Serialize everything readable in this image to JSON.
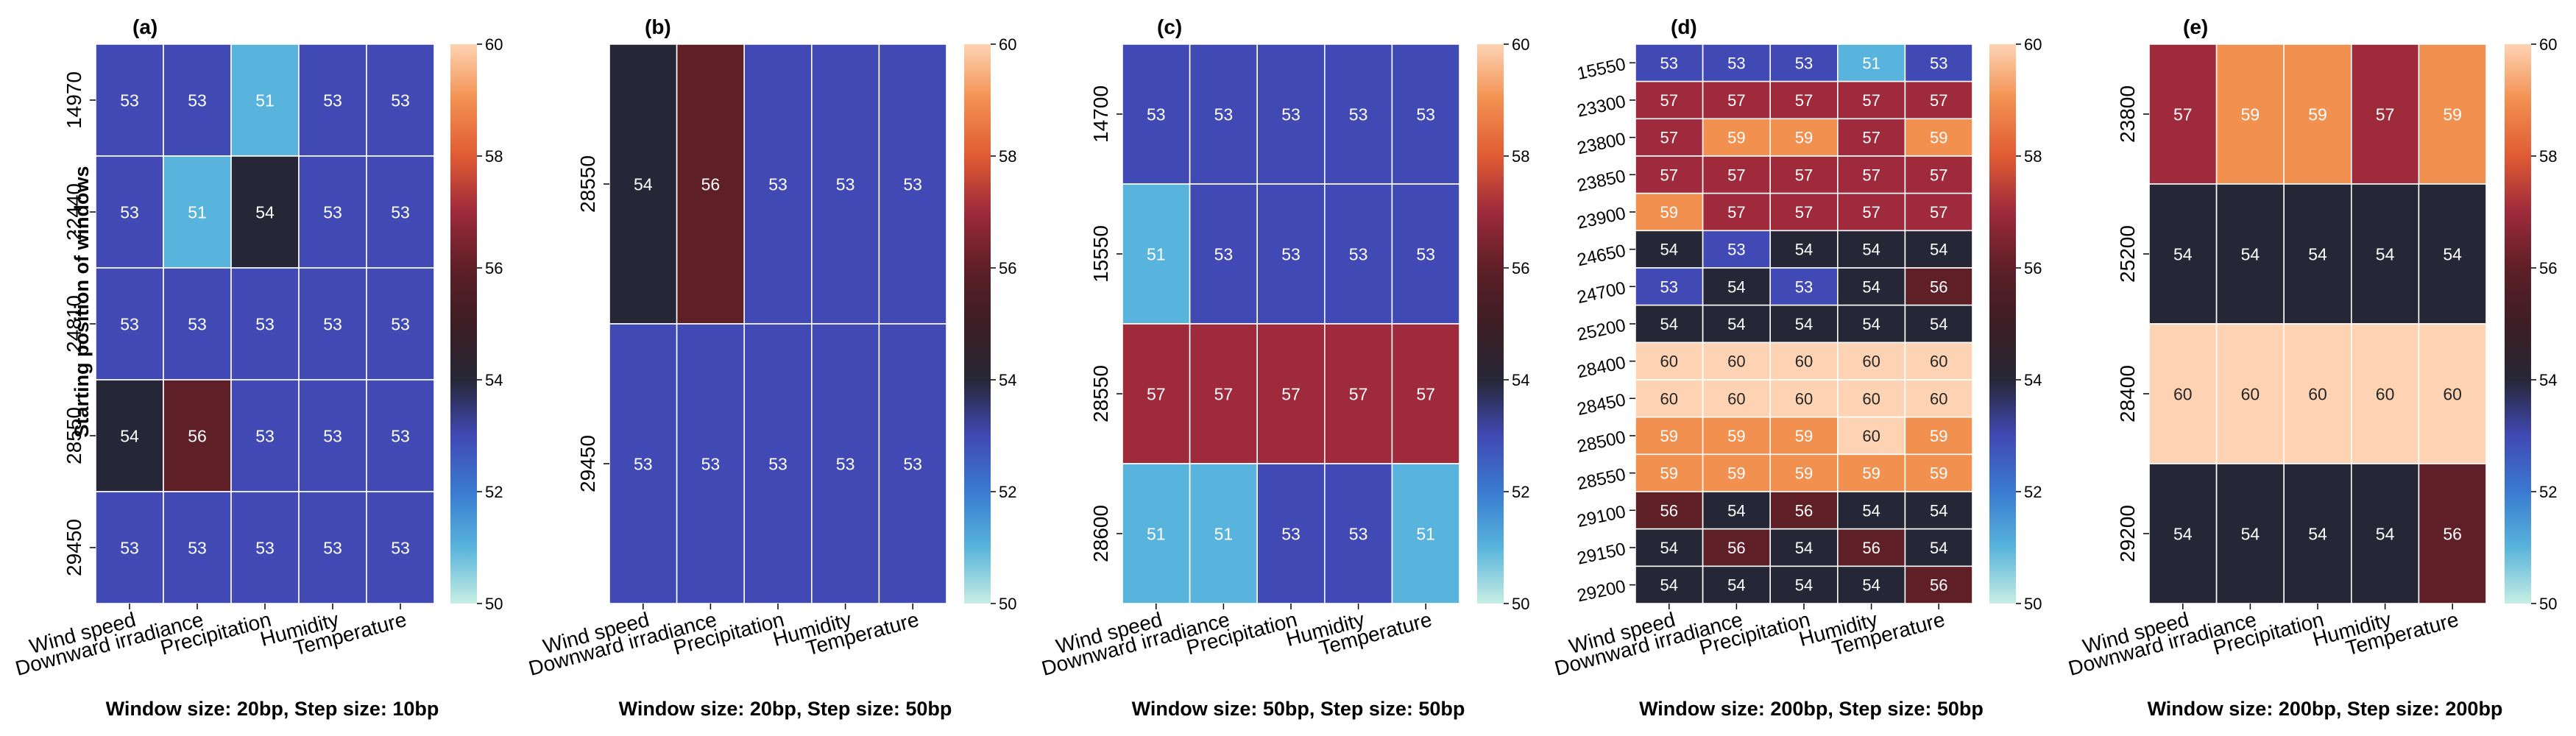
{
  "figure": {
    "ylabel": "Starting position of windows",
    "colorbar": {
      "min": 50,
      "max": 60,
      "ticks": [
        50,
        52,
        54,
        56,
        58,
        60
      ]
    },
    "colormap_stops": [
      {
        "v": 50,
        "c": "#c6eee4"
      },
      {
        "v": 51,
        "c": "#58b4dc"
      },
      {
        "v": 52,
        "c": "#3a7ad0"
      },
      {
        "v": 53,
        "c": "#4149b4"
      },
      {
        "v": 54,
        "c": "#262736"
      },
      {
        "v": 55,
        "c": "#3d1e24"
      },
      {
        "v": 56,
        "c": "#5e1f27"
      },
      {
        "v": 57,
        "c": "#9e2a3c"
      },
      {
        "v": 58,
        "c": "#e05b34"
      },
      {
        "v": 59,
        "c": "#f29050"
      },
      {
        "v": 60,
        "c": "#fdd3b4"
      }
    ]
  },
  "chart_data": [
    {
      "type": "heatmap",
      "panel_label": "(a)",
      "xlabel": "Window size: 20bp, Step size: 10bp",
      "x_categories": [
        "Wind speed",
        "Downward irradiance",
        "Precipitation",
        "Humidity",
        "Temperature"
      ],
      "y_categories": [
        "14970",
        "22440",
        "24810",
        "28550",
        "29450"
      ],
      "values": [
        [
          53,
          53,
          51,
          53,
          53
        ],
        [
          53,
          51,
          54,
          53,
          53
        ],
        [
          53,
          53,
          53,
          53,
          53
        ],
        [
          54,
          56,
          53,
          53,
          53
        ],
        [
          53,
          53,
          53,
          53,
          53
        ]
      ],
      "colorbar_ticks": [
        "50",
        "52",
        "54",
        "56",
        "58",
        "60"
      ]
    },
    {
      "type": "heatmap",
      "panel_label": "(b)",
      "xlabel": "Window size: 20bp, Step size: 50bp",
      "x_categories": [
        "Wind speed",
        "Downward irradiance",
        "Precipitation",
        "Humidity",
        "Temperature"
      ],
      "y_categories": [
        "28550",
        "29450"
      ],
      "values": [
        [
          54,
          56,
          53,
          53,
          53
        ],
        [
          53,
          53,
          53,
          53,
          53
        ]
      ],
      "colorbar_ticks": [
        "50",
        "52",
        "54",
        "56",
        "58",
        "60"
      ]
    },
    {
      "type": "heatmap",
      "panel_label": "(c)",
      "xlabel": "Window size: 50bp, Step size: 50bp",
      "x_categories": [
        "Wind speed",
        "Downward irradiance",
        "Precipitation",
        "Humidity",
        "Temperature"
      ],
      "y_categories": [
        "14700",
        "15550",
        "28550",
        "28600"
      ],
      "values": [
        [
          53,
          53,
          53,
          53,
          53
        ],
        [
          51,
          53,
          53,
          53,
          53
        ],
        [
          57,
          57,
          57,
          57,
          57
        ],
        [
          51,
          51,
          53,
          53,
          51
        ]
      ],
      "colorbar_ticks": [
        "50",
        "52",
        "54",
        "56",
        "58",
        "60"
      ]
    },
    {
      "type": "heatmap",
      "panel_label": "(d)",
      "xlabel": "Window size: 200bp, Step size: 50bp",
      "x_categories": [
        "Wind speed",
        "Downward irradiance",
        "Precipitation",
        "Humidity",
        "Temperature"
      ],
      "y_categories": [
        "15550",
        "23300",
        "23800",
        "23850",
        "23900",
        "24650",
        "24700",
        "25200",
        "28400",
        "28450",
        "28500",
        "28550",
        "29100",
        "29150",
        "29200"
      ],
      "values": [
        [
          53,
          53,
          53,
          51,
          53
        ],
        [
          57,
          57,
          57,
          57,
          57
        ],
        [
          57,
          59,
          59,
          57,
          59
        ],
        [
          57,
          57,
          57,
          57,
          57
        ],
        [
          59,
          57,
          57,
          57,
          57
        ],
        [
          54,
          53,
          54,
          54,
          54
        ],
        [
          53,
          54,
          53,
          54,
          56
        ],
        [
          54,
          54,
          54,
          54,
          54
        ],
        [
          60,
          60,
          60,
          60,
          60
        ],
        [
          60,
          60,
          60,
          60,
          60
        ],
        [
          59,
          59,
          59,
          60,
          59
        ],
        [
          59,
          59,
          59,
          59,
          59
        ],
        [
          56,
          54,
          56,
          54,
          54
        ],
        [
          54,
          56,
          54,
          56,
          54
        ],
        [
          54,
          54,
          54,
          54,
          56
        ]
      ],
      "colorbar_ticks": [
        "50",
        "52",
        "54",
        "56",
        "58",
        "60"
      ]
    },
    {
      "type": "heatmap",
      "panel_label": "(e)",
      "xlabel": "Window size: 200bp, Step size: 200bp",
      "x_categories": [
        "Wind speed",
        "Downward irradiance",
        "Precipitation",
        "Humidity",
        "Temperature"
      ],
      "y_categories": [
        "23800",
        "25200",
        "28400",
        "29200"
      ],
      "values": [
        [
          57,
          59,
          59,
          57,
          59
        ],
        [
          54,
          54,
          54,
          54,
          54
        ],
        [
          60,
          60,
          60,
          60,
          60
        ],
        [
          54,
          54,
          54,
          54,
          56
        ]
      ],
      "colorbar_ticks": [
        "50",
        "52",
        "54",
        "56",
        "58",
        "60"
      ]
    }
  ]
}
